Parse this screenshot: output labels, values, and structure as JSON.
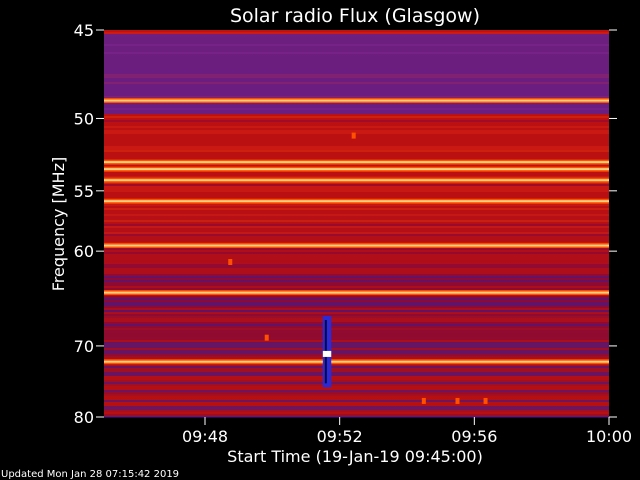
{
  "title": "Solar radio Flux (Glasgow)",
  "updated": "Updated Mon Jan 28 07:15:42 2019",
  "chart_data": {
    "type": "heatmap",
    "title": "Solar radio Flux (Glasgow)",
    "xlabel": "Start Time (19-Jan-19 09:45:00)",
    "ylabel": "Frequency [MHz]",
    "x_ticks": [
      "09:48",
      "09:52",
      "09:56",
      "10:00"
    ],
    "x_tick_minutes": [
      48,
      52,
      56,
      60
    ],
    "x_range_minutes": [
      45,
      60
    ],
    "y_ticks": [
      45,
      50,
      55,
      60,
      70,
      80
    ],
    "y_range_mhz": [
      45,
      80
    ],
    "y_scale": "reciprocal",
    "colormap": [
      "#0a0a40",
      "#2a2ad8",
      "#8a0a3a",
      "#c01010",
      "#ff5000",
      "#ffd080",
      "#ffffff"
    ],
    "bright_bands_mhz": [
      48.9,
      52.9,
      53.4,
      54.2,
      55.8,
      59.5,
      64.0,
      72.0
    ],
    "low_intensity_band_mhz": [
      45.2,
      49.6
    ],
    "burst": {
      "time_start": "09:51:30",
      "time_end": "09:51:45",
      "freq_mhz": [
        66.5,
        75.5
      ]
    },
    "hot_spots": [
      {
        "time": "09:52:25",
        "freq_mhz": 51.1
      },
      {
        "time": "09:48:45",
        "freq_mhz": 61.0
      },
      {
        "time": "09:49:50",
        "freq_mhz": 69.0
      },
      {
        "time": "09:54:30",
        "freq_mhz": 77.5
      },
      {
        "time": "09:55:30",
        "freq_mhz": 77.5
      },
      {
        "time": "09:56:20",
        "freq_mhz": 77.5
      }
    ]
  }
}
